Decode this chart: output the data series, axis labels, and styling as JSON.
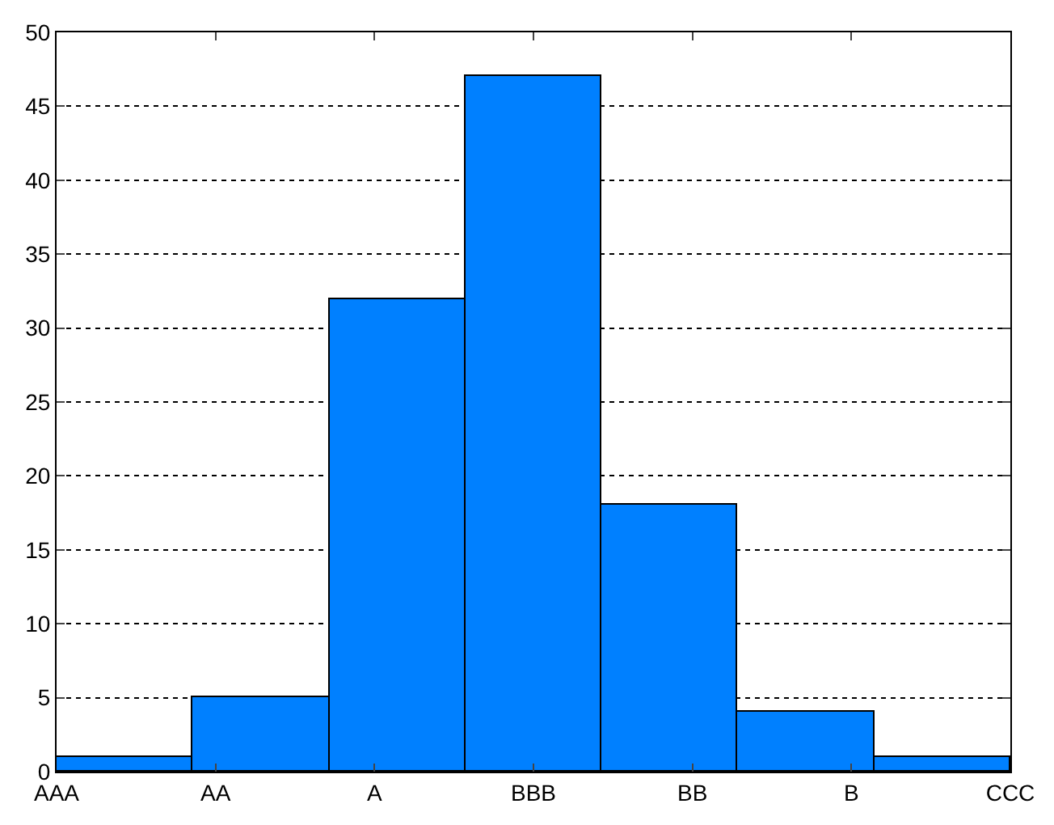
{
  "chart_data": {
    "type": "bar",
    "categories": [
      "AAA",
      "AA",
      "A",
      "BBB",
      "BB",
      "B",
      "CCC"
    ],
    "values": [
      1,
      5,
      32,
      47,
      18,
      4,
      1
    ],
    "color": "#0080ff",
    "ylim": [
      0,
      50
    ],
    "yticks": [
      0,
      5,
      10,
      15,
      20,
      25,
      30,
      35,
      40,
      45,
      50
    ],
    "grid": "y",
    "line_style": "dotted"
  }
}
